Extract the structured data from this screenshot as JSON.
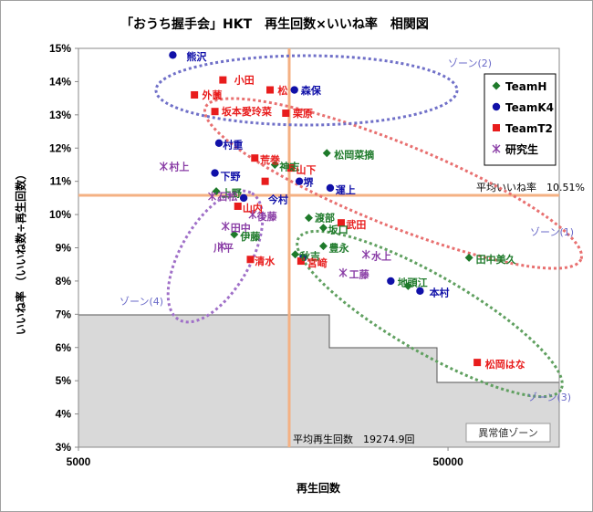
{
  "chart_data": {
    "type": "scatter",
    "title": "「おうち握手会」HKT　再生回数×いいね率　相関図",
    "xlabel": "再生回数",
    "ylabel": "いいね率 （いいね数÷再生回数）",
    "x_scale": "log",
    "xlim": [
      5000,
      100000
    ],
    "ylim": [
      3,
      15
    ],
    "x_ticks": [
      "5000",
      "50000"
    ],
    "y_ticks": [
      "3%",
      "4%",
      "5%",
      "6%",
      "7%",
      "8%",
      "9%",
      "10%",
      "11%",
      "12%",
      "13%",
      "14%",
      "15%"
    ],
    "grid": false,
    "legend_position": "top-right",
    "series": [
      {
        "name": "TeamH",
        "color": "#1e7a2a",
        "marker": "diamond",
        "points": [
          {
            "label": "松岡菜摘",
            "x": 23500,
            "y": 11.85
          },
          {
            "label": "神志",
            "x": 17000,
            "y": 11.5
          },
          {
            "label": "上野",
            "x": 11800,
            "y": 10.7
          },
          {
            "label": "伊藤",
            "x": 13200,
            "y": 9.4
          },
          {
            "label": "渡部",
            "x": 21000,
            "y": 9.9
          },
          {
            "label": "坂口",
            "x": 23000,
            "y": 9.6
          },
          {
            "label": "豊永",
            "x": 23000,
            "y": 9.05
          },
          {
            "label": "秋吉",
            "x": 19300,
            "y": 8.8
          },
          {
            "label": "田中美久",
            "x": 57000,
            "y": 8.7
          },
          {
            "label": "地頭江",
            "x": 39000,
            "y": 7.85
          }
        ]
      },
      {
        "name": "TeamK4",
        "color": "#1010a8",
        "marker": "circle",
        "points": [
          {
            "label": "熊沢",
            "x": 9000,
            "y": 14.8
          },
          {
            "label": "森保",
            "x": 19200,
            "y": 13.75
          },
          {
            "label": "村重",
            "x": 12000,
            "y": 12.15
          },
          {
            "label": "下野",
            "x": 11700,
            "y": 11.25
          },
          {
            "label": "堺",
            "x": 19800,
            "y": 11.0
          },
          {
            "label": "運上",
            "x": 24000,
            "y": 10.8
          },
          {
            "label": "今村",
            "x": 14000,
            "y": 10.5
          },
          {
            "label": "深川",
            "x": 20300,
            "y": 8.7
          },
          {
            "label": "地頭江",
            "x": 35000,
            "y": 8.0
          },
          {
            "label": "本村",
            "x": 42000,
            "y": 7.7
          }
        ]
      },
      {
        "name": "TeamT2",
        "color": "#e81c1c",
        "marker": "square",
        "points": [
          {
            "label": "小田",
            "x": 12300,
            "y": 14.05
          },
          {
            "label": "外薗",
            "x": 10300,
            "y": 13.6
          },
          {
            "label": "松",
            "x": 16500,
            "y": 13.75
          },
          {
            "label": "坂本愛玲菜",
            "x": 11700,
            "y": 13.1
          },
          {
            "label": "栗原",
            "x": 18200,
            "y": 13.05
          },
          {
            "label": "荒巻",
            "x": 15000,
            "y": 11.7
          },
          {
            "label": "山下",
            "x": 18800,
            "y": 11.4
          },
          {
            "label": "今村",
            "x": 16000,
            "y": 11.0
          },
          {
            "label": "山内",
            "x": 13500,
            "y": 10.25
          },
          {
            "label": "武田",
            "x": 25700,
            "y": 9.75
          },
          {
            "label": "清水",
            "x": 14600,
            "y": 8.65
          },
          {
            "label": "宮﨑",
            "x": 20000,
            "y": 8.6
          },
          {
            "label": "松岡はな",
            "x": 60000,
            "y": 5.55
          }
        ]
      },
      {
        "name": "研究生",
        "color": "#8a3ea6",
        "marker": "asterisk",
        "points": [
          {
            "label": "村上",
            "x": 8500,
            "y": 11.45
          },
          {
            "label": "石松",
            "x": 11500,
            "y": 10.55
          },
          {
            "label": "田中",
            "x": 12500,
            "y": 9.65
          },
          {
            "label": "後藤",
            "x": 14800,
            "y": 10.0
          },
          {
            "label": "川平",
            "x": 12200,
            "y": 9.05
          },
          {
            "label": "水上",
            "x": 30000,
            "y": 8.8
          },
          {
            "label": "工藤",
            "x": 26000,
            "y": 8.25
          }
        ]
      }
    ],
    "reference_lines": {
      "average_like_rate_label": "平均いいね率　10.51%",
      "average_like_rate": 10.51,
      "average_plays_label": "平均再生回数　19274.9回",
      "average_plays": 19274.9,
      "color": "#f4b183"
    },
    "zones": [
      {
        "label": "ゾーン(1)",
        "color": "#e87070"
      },
      {
        "label": "ゾーン(2)",
        "color": "#7070c8"
      },
      {
        "label": "ゾーン(3)",
        "color": "#60a060"
      },
      {
        "label": "ゾーン(4)",
        "color": "#a070c8"
      }
    ],
    "abnormal_zone_label": "異常値ゾーン"
  },
  "display_labels": [
    {
      "text": "熊沢",
      "x": 9800,
      "y": 14.75
    },
    {
      "text": "小田",
      "x": 13200,
      "y": 14.05
    },
    {
      "text": "外薗",
      "x": 10800,
      "y": 13.6
    },
    {
      "text": "松",
      "x": 17300,
      "y": 13.73
    },
    {
      "text": "森保",
      "x": 20000,
      "y": 13.73
    },
    {
      "text": "坂本愛玲菜",
      "x": 12200,
      "y": 13.1
    },
    {
      "text": "栗原",
      "x": 19000,
      "y": 13.05
    },
    {
      "text": "村重",
      "x": 12300,
      "y": 12.1
    },
    {
      "text": "松岡菜摘",
      "x": 24600,
      "y": 11.8
    },
    {
      "text": "荒巻",
      "x": 15500,
      "y": 11.65
    },
    {
      "text": "神志",
      "x": 17500,
      "y": 11.45
    },
    {
      "text": "村上",
      "x": 8800,
      "y": 11.45
    },
    {
      "text": "山下",
      "x": 19400,
      "y": 11.35
    },
    {
      "text": "下野",
      "x": 12100,
      "y": 11.15
    },
    {
      "text": "堺",
      "x": 20300,
      "y": 10.98
    },
    {
      "text": "運上",
      "x": 24800,
      "y": 10.75
    },
    {
      "text": "上野",
      "x": 12200,
      "y": 10.65
    },
    {
      "text": "石松",
      "x": 11900,
      "y": 10.55
    },
    {
      "text": "今村",
      "x": 16300,
      "y": 10.45
    },
    {
      "text": "山内",
      "x": 13900,
      "y": 10.2
    },
    {
      "text": "後藤",
      "x": 15200,
      "y": 9.95
    },
    {
      "text": "渡部",
      "x": 21800,
      "y": 9.9
    },
    {
      "text": "武田",
      "x": 26500,
      "y": 9.7
    },
    {
      "text": "田中",
      "x": 12900,
      "y": 9.6
    },
    {
      "text": "坂口",
      "x": 23700,
      "y": 9.55
    },
    {
      "text": "伊藤",
      "x": 13700,
      "y": 9.35
    },
    {
      "text": "豊永",
      "x": 23800,
      "y": 9.0
    },
    {
      "text": "川平",
      "x": 11600,
      "y": 9.0
    },
    {
      "text": "秋吉",
      "x": 19900,
      "y": 8.75
    },
    {
      "text": "水上",
      "x": 31000,
      "y": 8.75
    },
    {
      "text": "田中美久",
      "x": 59500,
      "y": 8.65
    },
    {
      "text": "清水",
      "x": 15000,
      "y": 8.6
    },
    {
      "text": "宮﨑",
      "x": 20800,
      "y": 8.55
    },
    {
      "text": "工藤",
      "x": 27000,
      "y": 8.2
    },
    {
      "text": "地頭江",
      "x": 36500,
      "y": 7.95
    },
    {
      "text": "本村",
      "x": 44500,
      "y": 7.65
    },
    {
      "text": "松岡はな",
      "x": 63000,
      "y": 5.5
    }
  ]
}
